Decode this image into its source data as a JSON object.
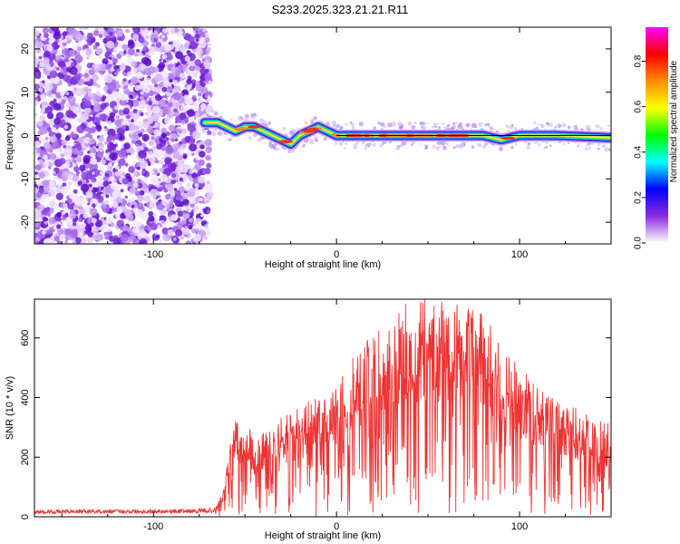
{
  "figure_title": "S233.2025.323.21.21.R11",
  "chart_data": [
    {
      "type": "heatmap",
      "title": "S233.2025.323.21.21.R11",
      "xlabel": "Height of straight line (km)",
      "ylabel": "Frequency (Hz)",
      "xlim": [
        -165,
        150
      ],
      "ylim": [
        -25,
        25
      ],
      "x_ticks": [
        -100,
        0,
        100
      ],
      "y_ticks": [
        -20,
        -10,
        0,
        10,
        20
      ],
      "noise_region_x": [
        -165,
        -72
      ],
      "ridge": {
        "x": [
          -72,
          -65,
          -60,
          -55,
          -50,
          -45,
          -40,
          -35,
          -30,
          -25,
          -20,
          -15,
          -10,
          -5,
          0,
          10,
          20,
          40,
          60,
          80,
          90,
          100,
          120,
          150
        ],
        "y": [
          3,
          3,
          2,
          1,
          2,
          2,
          1,
          0,
          -1,
          -2,
          0,
          1,
          2,
          1,
          0,
          0,
          0,
          0,
          0,
          0,
          -1,
          0,
          0,
          -0.5
        ]
      },
      "colorbar": {
        "label": "Normalized spectral amplitude",
        "range": [
          0,
          0.95
        ],
        "ticks": [
          "0.0",
          "0.2",
          "0.4",
          "0.6",
          "0.8"
        ],
        "colors": [
          "#ffffff",
          "#8a2be2",
          "#0000ff",
          "#00ffff",
          "#00ff00",
          "#ffff00",
          "#ff8c00",
          "#ff0000",
          "#ff00ff"
        ]
      }
    },
    {
      "type": "line",
      "xlabel": "Height of straight line (km)",
      "ylabel": "SNR (10 * v/v)",
      "xlim": [
        -165,
        150
      ],
      "ylim": [
        0,
        730
      ],
      "x_ticks": [
        -100,
        0,
        100
      ],
      "y_ticks": [
        0,
        200,
        400,
        600
      ],
      "series": [
        {
          "name": "SNR",
          "color": "#ee3333",
          "envelope_x": [
            -165,
            -140,
            -110,
            -80,
            -66,
            -62,
            -58,
            -55,
            -52,
            -48,
            -44,
            -40,
            -36,
            -30,
            -20,
            -10,
            0,
            10,
            20,
            30,
            40,
            50,
            60,
            70,
            80,
            90,
            100,
            110,
            120,
            130,
            140,
            150
          ],
          "envelope_y": [
            22,
            25,
            25,
            26,
            30,
            80,
            240,
            320,
            260,
            300,
            240,
            270,
            290,
            320,
            350,
            390,
            420,
            530,
            600,
            650,
            690,
            700,
            700,
            690,
            670,
            540,
            480,
            420,
            380,
            350,
            320,
            300
          ]
        }
      ]
    }
  ]
}
